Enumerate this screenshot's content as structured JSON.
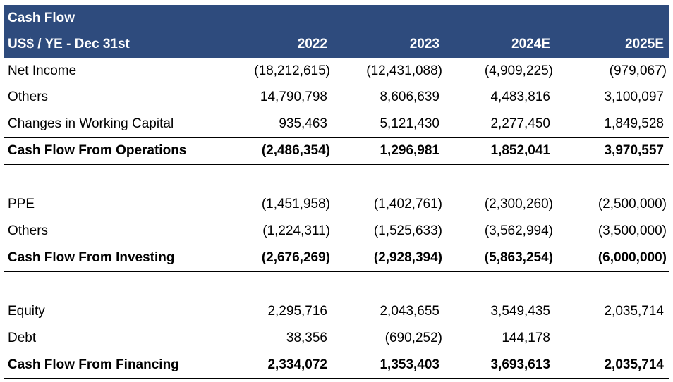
{
  "header": {
    "title": "Cash Flow",
    "subtitle": "US$ / YE - Dec 31st",
    "years": [
      "2022",
      "2023",
      "2024E",
      "2025E"
    ]
  },
  "rows": {
    "net_income": {
      "label": "Net Income",
      "values": [
        "(18,212,615)",
        "(12,431,088)",
        "(4,909,225)",
        "(979,067)"
      ]
    },
    "ops_others": {
      "label": "Others",
      "values": [
        "14,790,798",
        "8,606,639",
        "4,483,816",
        "3,100,097"
      ]
    },
    "working_capital": {
      "label": "Changes in Working Capital",
      "values": [
        "935,463",
        "5,121,430",
        "2,277,450",
        "1,849,528"
      ]
    },
    "cfo": {
      "label": "Cash Flow From Operations",
      "values": [
        "(2,486,354)",
        "1,296,981",
        "1,852,041",
        "3,970,557"
      ]
    },
    "ppe": {
      "label": "PPE",
      "values": [
        "(1,451,958)",
        "(1,402,761)",
        "(2,300,260)",
        "(2,500,000)"
      ]
    },
    "inv_others": {
      "label": "Others",
      "values": [
        "(1,224,311)",
        "(1,525,633)",
        "(3,562,994)",
        "(3,500,000)"
      ]
    },
    "cfi": {
      "label": "Cash Flow From Investing",
      "values": [
        "(2,676,269)",
        "(2,928,394)",
        "(5,863,254)",
        "(6,000,000)"
      ]
    },
    "equity": {
      "label": "Equity",
      "values": [
        "2,295,716",
        "2,043,655",
        "3,549,435",
        "2,035,714"
      ]
    },
    "debt": {
      "label": "Debt",
      "values": [
        "38,356",
        "(690,252)",
        "144,178",
        ""
      ]
    },
    "cff": {
      "label": "Cash Flow From Financing",
      "values": [
        "2,334,072",
        "1,353,403",
        "3,693,613",
        "2,035,714"
      ]
    }
  }
}
